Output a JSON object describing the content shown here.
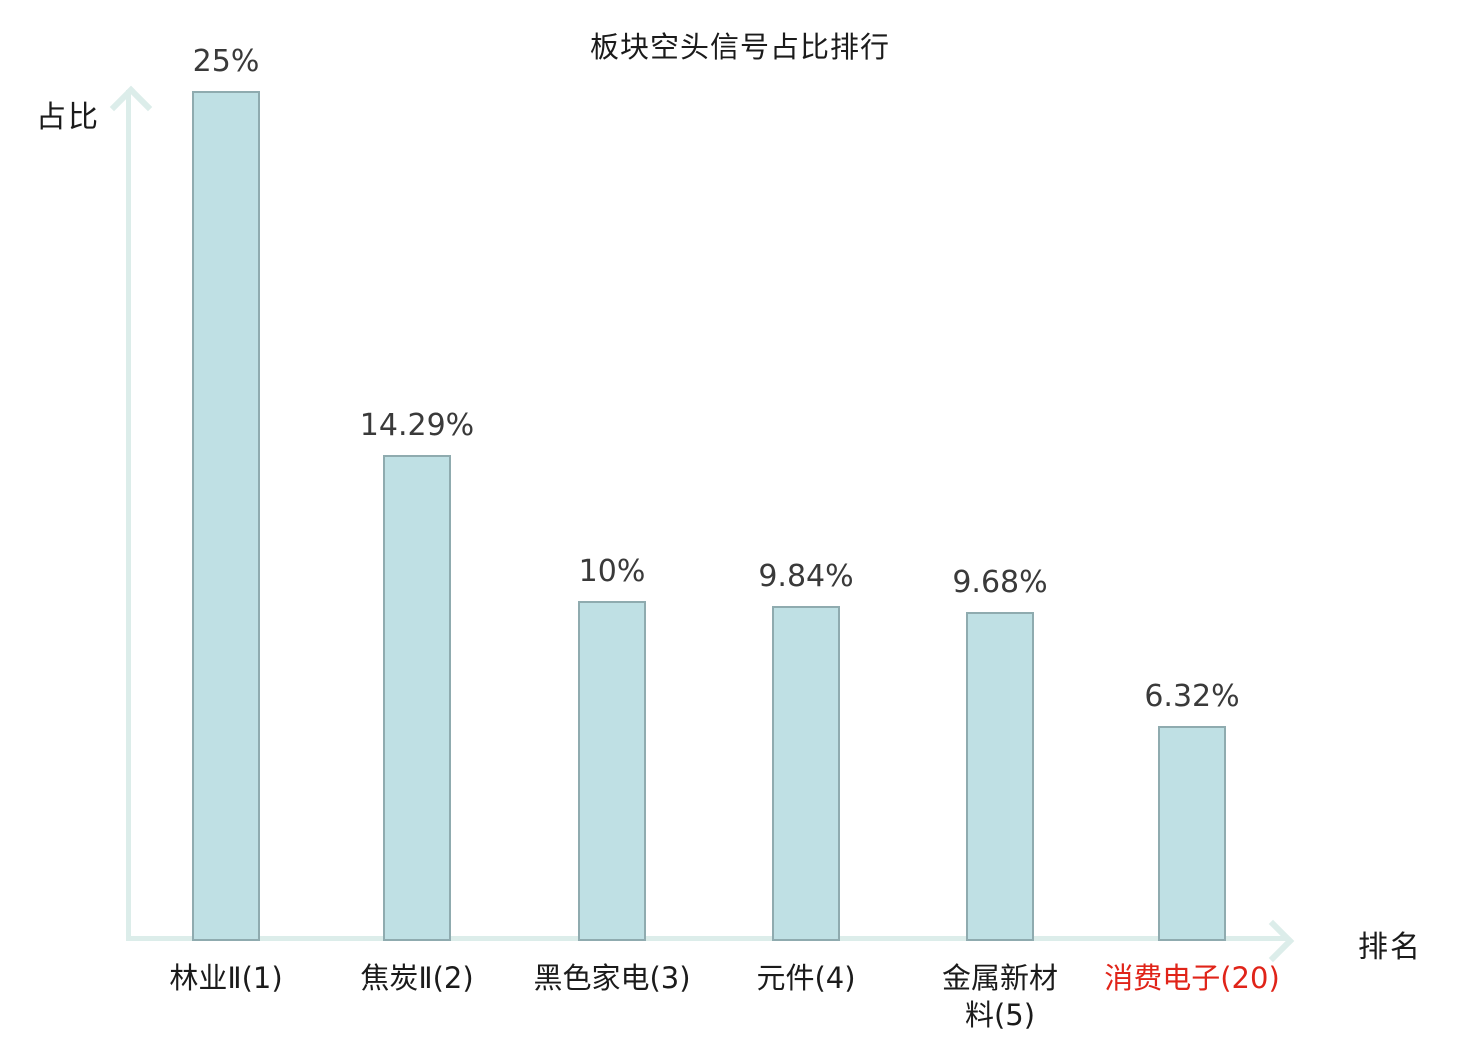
{
  "chart_data": {
    "type": "bar",
    "title": "板块空头信号占比排行",
    "xlabel": "排名",
    "ylabel": "占比",
    "categories": [
      "林业Ⅱ(1)",
      "焦炭Ⅱ(2)",
      "黑色家电(3)",
      "元件(4)",
      "金属新材\n料(5)",
      "消费电子(20)"
    ],
    "values": [
      25,
      14.29,
      10,
      9.84,
      9.68,
      6.32
    ],
    "value_labels": [
      "25%",
      "14.29%",
      "10%",
      "9.84%",
      "9.68%",
      "6.32%"
    ],
    "highlighted_index": 5,
    "ylim": [
      0,
      25
    ],
    "grid": false,
    "legend": null,
    "colors": {
      "bar_fill": "#bfe0e4",
      "bar_border": "#8fabaf",
      "axis": "#dcedea",
      "label_text": "#3a3a3a",
      "highlight_text": "#e02419"
    }
  }
}
